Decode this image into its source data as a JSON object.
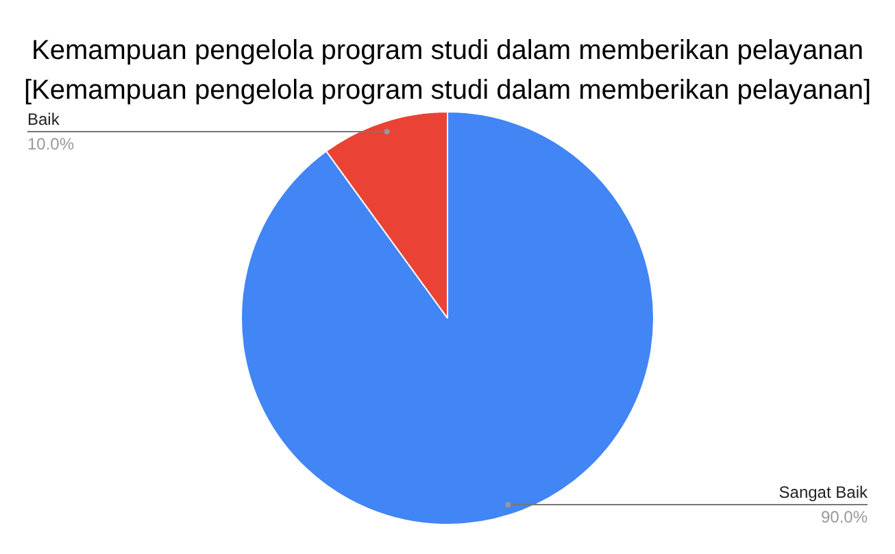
{
  "chart_data": {
    "type": "pie",
    "title": "Kemampuan pengelola program studi dalam memberikan pelayanan\n[Kemampuan pengelola program studi dalam memberikan pelayanan]",
    "categories": [
      "Sangat Baik",
      "Baik"
    ],
    "values": [
      90,
      10
    ],
    "colors": [
      "#4285f4",
      "#ea4335"
    ],
    "value_labels": [
      "90.0%",
      "10.0%"
    ],
    "legend": false
  }
}
